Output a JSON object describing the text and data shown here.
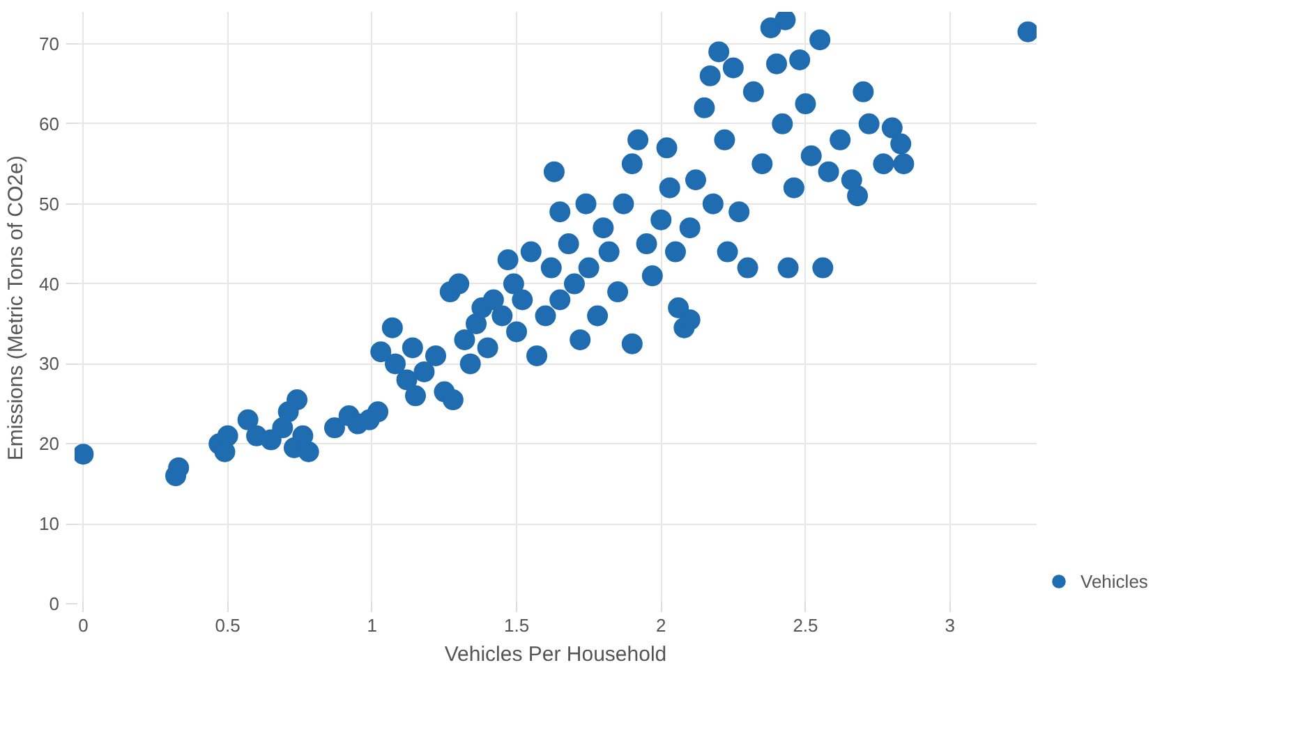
{
  "chart_data": {
    "type": "scatter",
    "xlabel": "Vehicles Per Household",
    "ylabel": "Emissions (Metric Tons of CO2e)",
    "xlim": [
      -0.03,
      3.3
    ],
    "ylim": [
      0,
      74
    ],
    "xticks": [
      0,
      0.5,
      1,
      1.5,
      2,
      2.5,
      3
    ],
    "yticks": [
      0,
      10,
      20,
      30,
      40,
      50,
      60,
      70
    ],
    "grid": true,
    "legend": "bottom right",
    "marker": "circle",
    "series": [
      {
        "name": "Vehicles",
        "color": "#1f6cb0",
        "x": [
          0,
          0.32,
          0.33,
          0.47,
          0.49,
          0.5,
          0.57,
          0.6,
          0.65,
          0.69,
          0.71,
          0.74,
          0.73,
          0.78,
          0.76,
          0.87,
          0.92,
          0.95,
          0.99,
          1.02,
          1.03,
          1.07,
          1.08,
          1.12,
          1.14,
          1.15,
          1.18,
          1.22,
          1.25,
          1.28,
          1.27,
          1.3,
          1.32,
          1.34,
          1.36,
          1.38,
          1.4,
          1.42,
          1.45,
          1.47,
          1.49,
          1.5,
          1.52,
          1.55,
          1.57,
          1.6,
          1.62,
          1.63,
          1.65,
          1.65,
          1.68,
          1.7,
          1.72,
          1.74,
          1.75,
          1.78,
          1.8,
          1.82,
          1.85,
          1.87,
          1.9,
          1.9,
          1.92,
          1.95,
          1.97,
          2.0,
          2.02,
          2.03,
          2.05,
          2.06,
          2.08,
          2.1,
          2.1,
          2.12,
          2.15,
          2.17,
          2.18,
          2.2,
          2.22,
          2.23,
          2.25,
          2.27,
          2.3,
          2.32,
          2.35,
          2.38,
          2.4,
          2.42,
          2.43,
          2.44,
          2.46,
          2.48,
          2.5,
          2.52,
          2.55,
          2.56,
          2.58,
          2.62,
          2.66,
          2.68,
          2.7,
          2.72,
          2.77,
          2.8,
          2.83,
          2.84,
          3.27
        ],
        "values": [
          18.7,
          16,
          17,
          20,
          19,
          21,
          23,
          21,
          20.5,
          22,
          24,
          25.5,
          19.5,
          19,
          21,
          22,
          23.5,
          22.5,
          23,
          24,
          31.5,
          34.5,
          30,
          28,
          32,
          26,
          29,
          31,
          26.5,
          25.5,
          39,
          40,
          33,
          30,
          35,
          37,
          32,
          38,
          36,
          43,
          40,
          34,
          38,
          44,
          31,
          36,
          42,
          54,
          49,
          38,
          45,
          40,
          33,
          50,
          42,
          36,
          47,
          44,
          39,
          50,
          32.5,
          55,
          58,
          45,
          41,
          48,
          57,
          52,
          44,
          37,
          34.5,
          35.5,
          47,
          53,
          62,
          66,
          50,
          69,
          58,
          44,
          67,
          49,
          42,
          64,
          55,
          72,
          67.5,
          60,
          73,
          42,
          52,
          68,
          62.5,
          56,
          70.5,
          42,
          54,
          58,
          53,
          51,
          64,
          60,
          55,
          59.5,
          57.5,
          55,
          71.5
        ]
      }
    ]
  }
}
